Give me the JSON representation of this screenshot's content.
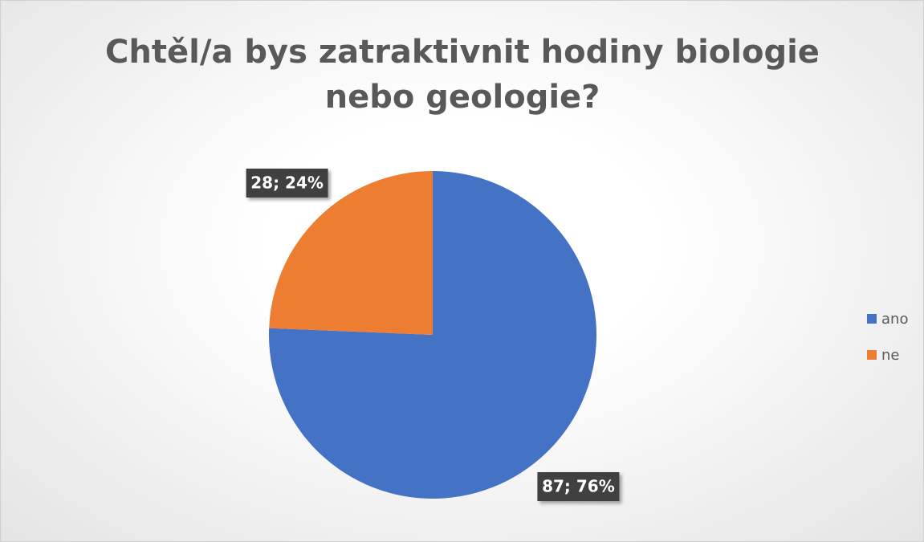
{
  "chart_data": {
    "type": "pie",
    "title": "Chtěl/a bys zatraktivnit hodiny biologie nebo geologie?",
    "categories": [
      "ano",
      "ne"
    ],
    "values": [
      87,
      28
    ],
    "value_labels": [
      "87; 76%",
      "28; 24%"
    ],
    "colors": [
      "#4472c4",
      "#ed7d31"
    ],
    "legend": "right"
  }
}
